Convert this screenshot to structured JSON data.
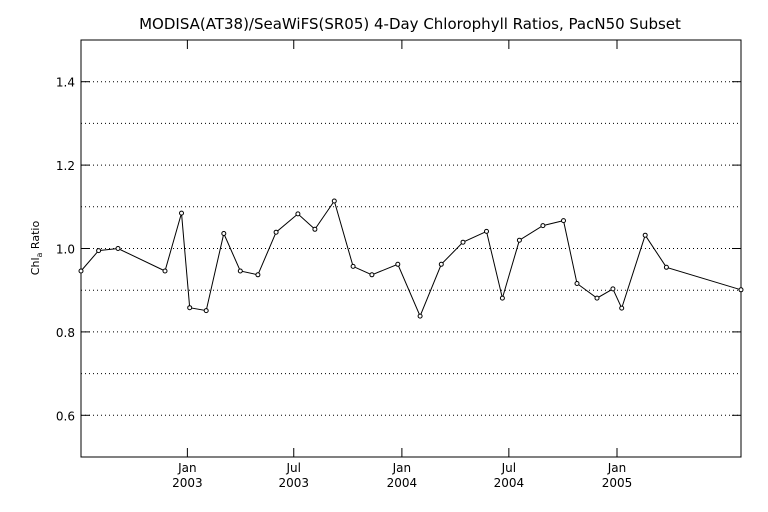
{
  "chart_data": {
    "type": "line",
    "title": "MODISA(AT38)/SeaWiFS(SR05) 4-Day Chlorophyll Ratios, PacN50 Subset",
    "ylabel": {
      "base": "Chl",
      "sub": "a",
      "rest": " Ratio"
    },
    "xlabel": "",
    "ylim": [
      0.5,
      1.5
    ],
    "xlim": [
      "2002-07-04",
      "2005-07-31"
    ],
    "yticks": [
      0.6,
      0.8,
      1.0,
      1.2,
      1.4
    ],
    "ytick_labels": [
      "0.6",
      "0.8",
      "1.0",
      "1.2",
      "1.4"
    ],
    "grid": "horizontal dotted every 0.1",
    "x_ticks": [
      {
        "date": "2003-01-01",
        "month": "Jan",
        "year": "2003"
      },
      {
        "date": "2003-07-01",
        "month": "Jul",
        "year": "2003"
      },
      {
        "date": "2004-01-01",
        "month": "Jan",
        "year": "2004"
      },
      {
        "date": "2004-07-01",
        "month": "Jul",
        "year": "2004"
      },
      {
        "date": "2005-01-01",
        "month": "Jan",
        "year": "2005"
      }
    ],
    "series": [
      {
        "points": [
          {
            "x": "2002-07-04",
            "y": 0.946
          },
          {
            "x": "2002-08-03",
            "y": 0.995
          },
          {
            "x": "2002-09-05",
            "y": 1.0
          },
          {
            "x": "2002-11-24",
            "y": 0.946
          },
          {
            "x": "2002-12-22",
            "y": 1.085
          },
          {
            "x": "2003-01-05",
            "y": 0.858
          },
          {
            "x": "2003-02-02",
            "y": 0.851
          },
          {
            "x": "2003-03-04",
            "y": 1.036
          },
          {
            "x": "2003-04-01",
            "y": 0.946
          },
          {
            "x": "2003-05-01",
            "y": 0.937
          },
          {
            "x": "2003-06-01",
            "y": 1.039
          },
          {
            "x": "2003-07-08",
            "y": 1.083
          },
          {
            "x": "2003-08-06",
            "y": 1.046
          },
          {
            "x": "2003-09-08",
            "y": 1.114
          },
          {
            "x": "2003-10-10",
            "y": 0.957
          },
          {
            "x": "2003-11-11",
            "y": 0.937
          },
          {
            "x": "2003-12-25",
            "y": 0.962
          },
          {
            "x": "2004-02-01",
            "y": 0.838
          },
          {
            "x": "2004-03-08",
            "y": 0.962
          },
          {
            "x": "2004-04-14",
            "y": 1.015
          },
          {
            "x": "2004-05-24",
            "y": 1.041
          },
          {
            "x": "2004-06-20",
            "y": 0.881
          },
          {
            "x": "2004-07-19",
            "y": 1.02
          },
          {
            "x": "2004-08-28",
            "y": 1.055
          },
          {
            "x": "2004-10-02",
            "y": 1.067
          },
          {
            "x": "2004-10-25",
            "y": 0.916
          },
          {
            "x": "2004-11-28",
            "y": 0.881
          },
          {
            "x": "2004-12-25",
            "y": 0.903
          },
          {
            "x": "2005-01-09",
            "y": 0.857
          },
          {
            "x": "2005-02-18",
            "y": 1.032
          },
          {
            "x": "2005-03-26",
            "y": 0.955
          },
          {
            "x": "2005-07-31",
            "y": 0.901
          }
        ]
      }
    ]
  }
}
